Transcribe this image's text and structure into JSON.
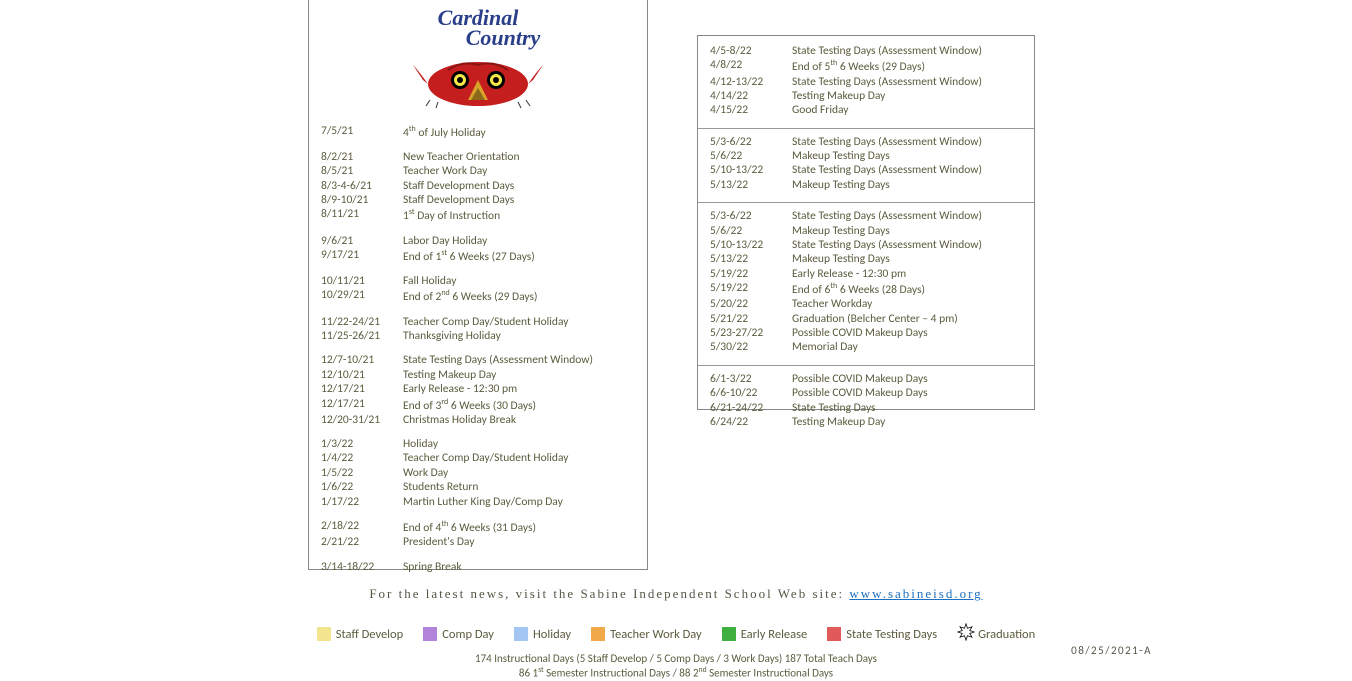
{
  "logo": {
    "title_line1": "Cardinal",
    "title_line2": "Country",
    "title_color": "#2a3f8a",
    "cardinal_red": "#c41e1e",
    "cardinal_beak": "#d9a22a",
    "cardinal_eye": "#f5e94a"
  },
  "text_color": "#5b5b3e",
  "left_groups": [
    [
      {
        "date": "7/5/21",
        "desc": "4th of July Holiday",
        "sup": "th",
        "sup_after": "4"
      }
    ],
    [
      {
        "date": "8/2/21",
        "desc": "New Teacher Orientation"
      },
      {
        "date": "8/5/21",
        "desc": "Teacher Work Day"
      },
      {
        "date": "8/3-4-6/21",
        "desc": "Staff Development Days"
      },
      {
        "date": "8/9-10/21",
        "desc": "Staff Development Days"
      },
      {
        "date": "8/11/21",
        "desc": "1st Day of Instruction",
        "sup": "st",
        "sup_after": "1"
      }
    ],
    [
      {
        "date": "9/6/21",
        "desc": "Labor Day Holiday"
      },
      {
        "date": "9/17/21",
        "desc": "End of 1st 6 Weeks (27 Days)",
        "sup": "st",
        "sup_after": "End of 1"
      }
    ],
    [
      {
        "date": "10/11/21",
        "desc": "Fall Holiday"
      },
      {
        "date": "10/29/21",
        "desc": "End of 2nd 6 Weeks (29 Days)",
        "sup": "nd",
        "sup_after": "End of 2"
      }
    ],
    [
      {
        "date": "11/22-24/21",
        "desc": "Teacher Comp Day/Student Holiday"
      },
      {
        "date": "11/25-26/21",
        "desc": "Thanksgiving Holiday"
      }
    ],
    [
      {
        "date": "12/7-10/21",
        "desc": "State Testing Days (Assessment Window)"
      },
      {
        "date": "12/10/21",
        "desc": "Testing Makeup Day"
      },
      {
        "date": "12/17/21",
        "desc": "Early Release - 12:30 pm"
      },
      {
        "date": "12/17/21",
        "desc": "End of 3rd 6 Weeks (30 Days)",
        "sup": "rd",
        "sup_after": "End of 3"
      },
      {
        "date": "12/20-31/21",
        "desc": "Christmas Holiday Break"
      }
    ],
    [
      {
        "date": "1/3/22",
        "desc": "Holiday"
      },
      {
        "date": "1/4/22",
        "desc": "Teacher Comp Day/Student Holiday"
      },
      {
        "date": "1/5/22",
        "desc": "Work Day"
      },
      {
        "date": "1/6/22",
        "desc": "Students Return"
      },
      {
        "date": "1/17/22",
        "desc": "Martin Luther King Day/Comp Day"
      }
    ],
    [
      {
        "date": "2/18/22",
        "desc": "End of 4th 6 Weeks (31 Days)",
        "sup": "th",
        "sup_after": "End of 4"
      },
      {
        "date": "2/21/22",
        "desc": "President's Day"
      }
    ],
    [
      {
        "date": "3/14-18/22",
        "desc": "Spring Break"
      }
    ]
  ],
  "right_sections": [
    [
      {
        "date": "4/5-8/22",
        "desc": "State Testing Days (Assessment Window)"
      },
      {
        "date": "4/8/22",
        "desc": "End of 5th 6 Weeks (29 Days)",
        "sup": "th",
        "sup_after": "End of 5"
      },
      {
        "date": "4/12-13/22",
        "desc": "State Testing Days (Assessment Window)"
      },
      {
        "date": "4/14/22",
        "desc": "Testing Makeup Day"
      },
      {
        "date": "4/15/22",
        "desc": "Good Friday"
      }
    ],
    [
      {
        "date": "5/3-6/22",
        "desc": "State Testing Days (Assessment Window)"
      },
      {
        "date": "5/6/22",
        "desc": "Makeup Testing Days"
      },
      {
        "date": "5/10-13/22",
        "desc": "State Testing Days (Assessment Window)"
      },
      {
        "date": "5/13/22",
        "desc": "Makeup Testing Days"
      }
    ],
    [
      {
        "date": "5/3-6/22",
        "desc": "State Testing Days (Assessment Window)"
      },
      {
        "date": "5/6/22",
        "desc": "Makeup Testing Days"
      },
      {
        "date": "5/10-13/22",
        "desc": "State Testing Days (Assessment Window)"
      },
      {
        "date": "5/13/22",
        "desc": "Makeup Testing Days"
      },
      {
        "date": "5/19/22",
        "desc": "Early Release - 12:30 pm"
      },
      {
        "date": "5/19/22",
        "desc": "End of 6th 6 Weeks (28 Days)",
        "sup": "th",
        "sup_after": "End of 6"
      },
      {
        "date": "5/20/22",
        "desc": "Teacher Workday"
      },
      {
        "date": "5/21/22",
        "desc": "Graduation (Belcher Center – 4 pm)"
      },
      {
        "date": "5/23-27/22",
        "desc": "Possible COVID Makeup Days"
      },
      {
        "date": "5/30/22",
        "desc": "Memorial Day"
      }
    ],
    [
      {
        "date": "6/1-3/22",
        "desc": "Possible COVID Makeup Days"
      },
      {
        "date": "6/6-10/22",
        "desc": "Possible COVID Makeup Days"
      },
      {
        "date": "6/21-24/22",
        "desc": "State Testing Days"
      },
      {
        "date": "6/24/22",
        "desc": "Testing Makeup Day"
      }
    ]
  ],
  "news": {
    "prefix": "For the latest news, visit the Sabine Independent School Web site: ",
    "link_text": "www.sabineisd.org",
    "link_color": "#1e6fbf"
  },
  "legend": [
    {
      "label": "Staff Develop",
      "color": "#f3e48f"
    },
    {
      "label": "Comp Day",
      "color": "#b184d9"
    },
    {
      "label": "Holiday",
      "color": "#a3c5f2"
    },
    {
      "label": "Teacher Work Day",
      "color": "#f0a848"
    },
    {
      "label": "Early Release",
      "color": "#3fb03f"
    },
    {
      "label": "State Testing Days",
      "color": "#e05a5a"
    },
    {
      "label": "Graduation",
      "color": "star"
    }
  ],
  "revision": "08/25/2021-A",
  "summary": {
    "line1": "174  Instructional Days (5  Staff Develop / 5 Comp Days / 3  Work Days) 187 Total Teach Days",
    "line2_a": "86 1",
    "line2_sup1": "st",
    "line2_b": " Semester Instructional Days  /  88 2",
    "line2_sup2": "nd",
    "line2_c": " Semester Instructional Days"
  }
}
